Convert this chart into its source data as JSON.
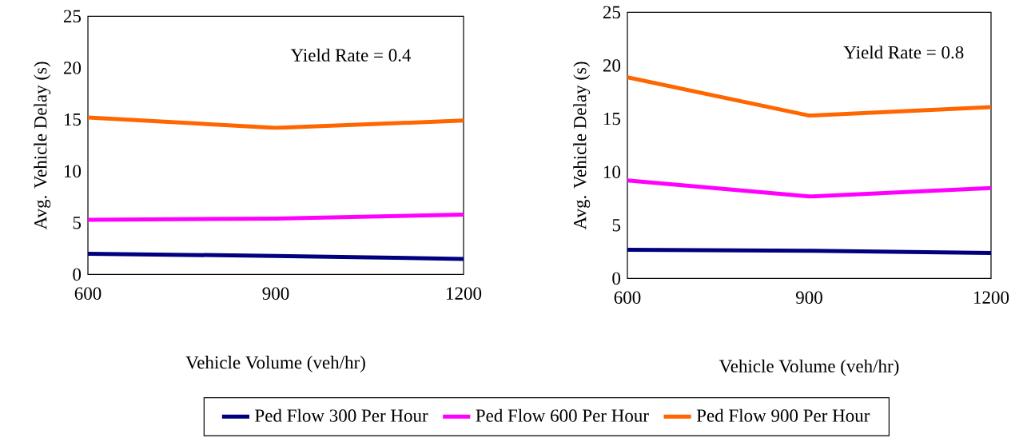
{
  "chart_data": [
    {
      "type": "line",
      "xlabel": "Vehicle Volume (veh/hr)",
      "ylabel": "Avg. Vehicle Delay (s)",
      "annotations": [
        "Yield Rate = 0.4"
      ],
      "x": [
        600,
        900,
        1200
      ],
      "xlim": [
        600,
        1200
      ],
      "xticks": [
        600,
        900,
        1200
      ],
      "ylim": [
        0,
        25
      ],
      "yticks": [
        0,
        5,
        10,
        15,
        20,
        25
      ],
      "legend": "bottom",
      "marker": "none",
      "series": [
        {
          "name": "Ped Flow 300 Per Hour",
          "color": "#00007f",
          "values": [
            2.0,
            1.8,
            1.5
          ]
        },
        {
          "name": "Ped Flow 600 Per Hour",
          "color": "#ff00ff",
          "values": [
            5.3,
            5.4,
            5.8
          ]
        },
        {
          "name": "Ped Flow 900 Per Hour",
          "color": "#ff6600",
          "values": [
            15.2,
            14.2,
            14.9
          ]
        }
      ]
    },
    {
      "type": "line",
      "xlabel": "Vehicle Volume (veh/hr)",
      "ylabel": "Avg. Vehicle Delay (s)",
      "annotations": [
        "Yield Rate = 0.8"
      ],
      "x": [
        600,
        900,
        1200
      ],
      "xlim": [
        600,
        1200
      ],
      "xticks": [
        600,
        900,
        1200
      ],
      "ylim": [
        0,
        25
      ],
      "yticks": [
        0,
        5,
        10,
        15,
        20,
        25
      ],
      "marker": "none",
      "series": [
        {
          "color": "#00007f",
          "values": [
            2.7,
            2.6,
            2.4
          ]
        },
        {
          "color": "#ff00ff",
          "values": [
            9.2,
            7.7,
            8.5
          ]
        },
        {
          "color": "#ff6600",
          "values": [
            18.9,
            15.3,
            16.1
          ]
        }
      ]
    }
  ]
}
